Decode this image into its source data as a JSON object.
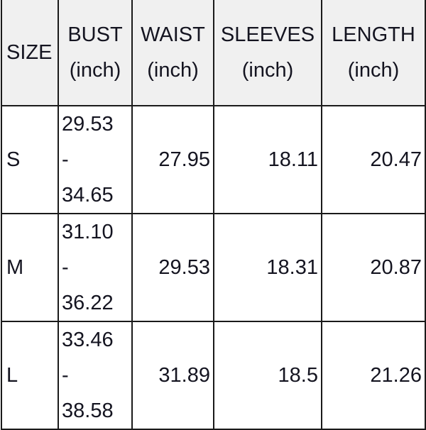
{
  "headers": [
    {
      "title": "SIZE",
      "unit": ""
    },
    {
      "title": "BUST",
      "unit": "(inch)"
    },
    {
      "title": "WAIST",
      "unit": "(inch)"
    },
    {
      "title": "SLEEVES",
      "unit": "(inch)"
    },
    {
      "title": "LENGTH",
      "unit": "(inch)"
    }
  ],
  "rows": [
    {
      "size": "S",
      "bust_min": "29.53",
      "bust_sep": "-",
      "bust_max": "34.65",
      "waist": "27.95",
      "sleeves": "18.11",
      "length": "20.47"
    },
    {
      "size": "M",
      "bust_min": "31.10",
      "bust_sep": "-",
      "bust_max": "36.22",
      "waist": "29.53",
      "sleeves": "18.31",
      "length": "20.87"
    },
    {
      "size": "L",
      "bust_min": "33.46",
      "bust_sep": "-",
      "bust_max": "38.58",
      "waist": "31.89",
      "sleeves": "18.5",
      "length": "21.26"
    }
  ],
  "colors": {
    "header_bg": "#f0f0f0",
    "border": "#1a1a1a",
    "text": "#141420"
  }
}
